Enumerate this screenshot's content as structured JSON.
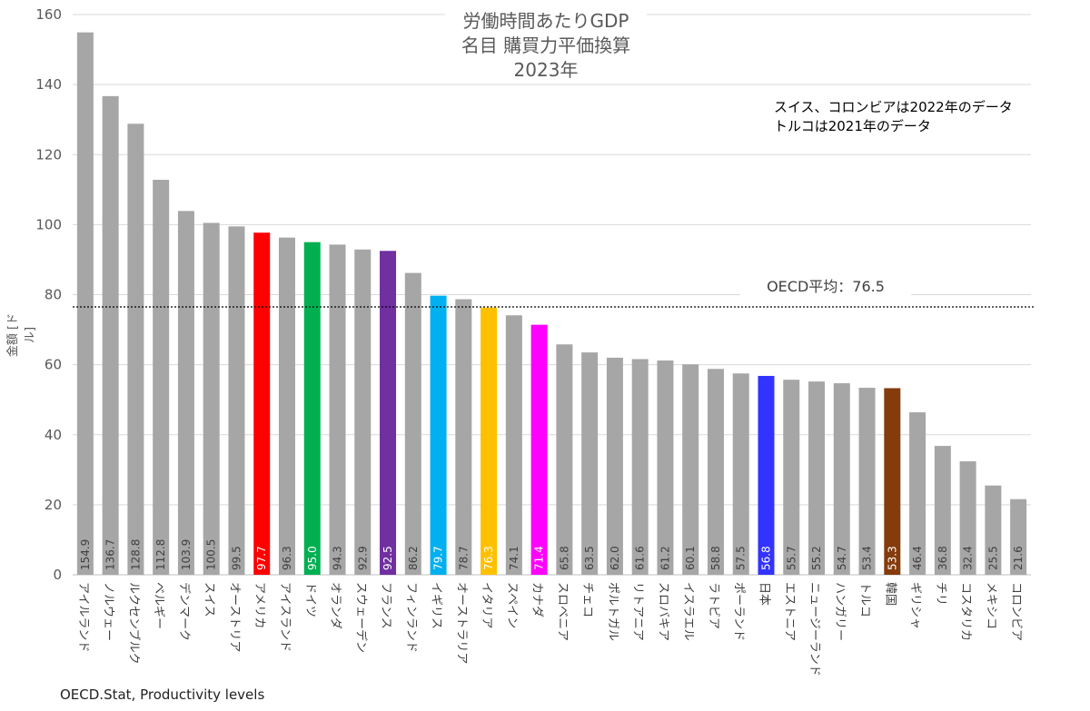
{
  "chart_data": {
    "type": "bar",
    "title_lines": [
      "労働時間あたりGDP",
      "名目 購買力平価換算",
      "2023年"
    ],
    "note_lines": [
      "スイス、コロンビアは2022年のデータ",
      "トルコは2021年のデータ"
    ],
    "ylabel": "金額 [ドル]",
    "xlabel": "",
    "ylim": [
      0,
      160
    ],
    "yticks": [
      0,
      20,
      40,
      60,
      80,
      100,
      120,
      140,
      160
    ],
    "grid": true,
    "average": {
      "value": 76.5,
      "label": "OECD平均：76.5"
    },
    "source": "OECD.Stat, Productivity levels",
    "default_color": "#a6a6a6",
    "categories": [
      "アイルランド",
      "ノルウェー",
      "ルクセンブルク",
      "ベルギー",
      "デンマーク",
      "スイス",
      "オーストリア",
      "アメリカ",
      "アイスランド",
      "ドイツ",
      "オランダ",
      "スウェーデン",
      "フランス",
      "フィンランド",
      "イギリス",
      "オーストラリア",
      "イタリア",
      "スペイン",
      "カナダ",
      "スロベニア",
      "チェコ",
      "ポルトガル",
      "リトアニア",
      "スロバキア",
      "イスラエル",
      "ラトビア",
      "ポーランド",
      "日本",
      "エストニア",
      "ニュージーランド",
      "ハンガリー",
      "トルコ",
      "韓国",
      "ギリシャ",
      "チリ",
      "コスタリカ",
      "メキシコ",
      "コロンビア"
    ],
    "values": [
      154.9,
      136.7,
      128.8,
      112.8,
      103.9,
      100.5,
      99.5,
      97.7,
      96.3,
      95.0,
      94.3,
      92.9,
      92.5,
      86.2,
      79.7,
      78.7,
      76.3,
      74.1,
      71.4,
      65.8,
      63.5,
      62.0,
      61.6,
      61.2,
      60.1,
      58.8,
      57.5,
      56.8,
      55.7,
      55.2,
      54.7,
      53.4,
      53.3,
      46.4,
      36.8,
      32.4,
      25.5,
      21.6
    ],
    "value_labels": [
      "154.9",
      "136.7",
      "128.8",
      "112.8",
      "103.9",
      "100.5",
      "99.5",
      "97.7",
      "96.3",
      "95.0",
      "94.3",
      "92.9",
      "92.5",
      "86.2",
      "79.7",
      "78.7",
      "76.3",
      "74.1",
      "71.4",
      "65.8",
      "63.5",
      "62.0",
      "61.6",
      "61.2",
      "60.1",
      "58.8",
      "57.5",
      "56.8",
      "55.7",
      "55.2",
      "54.7",
      "53.4",
      "53.3",
      "46.4",
      "36.8",
      "32.4",
      "25.5",
      "21.6"
    ],
    "highlight_colors": {
      "アメリカ": "#ff0000",
      "ドイツ": "#00b050",
      "フランス": "#7030a0",
      "イギリス": "#00b0f0",
      "イタリア": "#ffc000",
      "カナダ": "#ff00ff",
      "日本": "#3333ff",
      "韓国": "#843c0c"
    }
  }
}
